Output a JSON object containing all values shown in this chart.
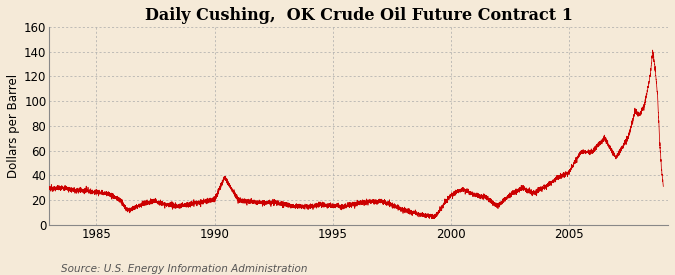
{
  "title": "Daily Cushing,  OK Crude Oil Future Contract 1",
  "ylabel": "Dollars per Barrel",
  "source": "Source: U.S. Energy Information Administration",
  "line_color": "#cc0000",
  "background_color": "#f5ead8",
  "plot_background": "#f5ead8",
  "ylim": [
    0,
    160
  ],
  "yticks": [
    0,
    20,
    40,
    60,
    80,
    100,
    120,
    140,
    160
  ],
  "xticks_years": [
    1985,
    1990,
    1995,
    2000,
    2005
  ],
  "xmin": 1983.0,
  "xmax": 2009.2,
  "grid_color": "#aaaaaa",
  "title_fontsize": 11.5,
  "label_fontsize": 8.5,
  "tick_fontsize": 8.5,
  "source_fontsize": 7.5,
  "key_points": [
    [
      1983.0,
      29
    ],
    [
      1983.5,
      30
    ],
    [
      1984.0,
      29
    ],
    [
      1984.5,
      28
    ],
    [
      1985.0,
      27
    ],
    [
      1985.5,
      25
    ],
    [
      1986.0,
      20
    ],
    [
      1986.3,
      12
    ],
    [
      1986.5,
      13
    ],
    [
      1987.0,
      18
    ],
    [
      1987.5,
      20
    ],
    [
      1988.0,
      17
    ],
    [
      1988.5,
      16
    ],
    [
      1989.0,
      18
    ],
    [
      1989.5,
      20
    ],
    [
      1990.0,
      22
    ],
    [
      1990.42,
      40
    ],
    [
      1990.65,
      33
    ],
    [
      1991.0,
      22
    ],
    [
      1991.5,
      21
    ],
    [
      1992.0,
      20
    ],
    [
      1992.5,
      21
    ],
    [
      1993.0,
      19
    ],
    [
      1993.5,
      18
    ],
    [
      1994.0,
      17
    ],
    [
      1994.5,
      19
    ],
    [
      1995.0,
      18
    ],
    [
      1995.5,
      18
    ],
    [
      1996.0,
      20
    ],
    [
      1996.5,
      22
    ],
    [
      1997.0,
      22
    ],
    [
      1997.5,
      20
    ],
    [
      1998.0,
      16
    ],
    [
      1998.5,
      14
    ],
    [
      1998.8,
      12
    ],
    [
      1999.0,
      12
    ],
    [
      1999.3,
      10
    ],
    [
      1999.7,
      20
    ],
    [
      2000.0,
      28
    ],
    [
      2000.5,
      32
    ],
    [
      2001.0,
      28
    ],
    [
      2001.5,
      26
    ],
    [
      2001.9,
      20
    ],
    [
      2002.0,
      20
    ],
    [
      2002.5,
      28
    ],
    [
      2003.0,
      34
    ],
    [
      2003.5,
      30
    ],
    [
      2004.0,
      35
    ],
    [
      2004.5,
      42
    ],
    [
      2005.0,
      47
    ],
    [
      2005.5,
      62
    ],
    [
      2006.0,
      63
    ],
    [
      2006.5,
      74
    ],
    [
      2007.0,
      58
    ],
    [
      2007.3,
      68
    ],
    [
      2007.5,
      74
    ],
    [
      2007.8,
      95
    ],
    [
      2008.0,
      92
    ],
    [
      2008.2,
      100
    ],
    [
      2008.45,
      125
    ],
    [
      2008.55,
      145
    ],
    [
      2008.65,
      130
    ],
    [
      2008.75,
      110
    ],
    [
      2008.85,
      70
    ],
    [
      2008.92,
      50
    ],
    [
      2008.97,
      40
    ],
    [
      2009.0,
      35
    ]
  ]
}
